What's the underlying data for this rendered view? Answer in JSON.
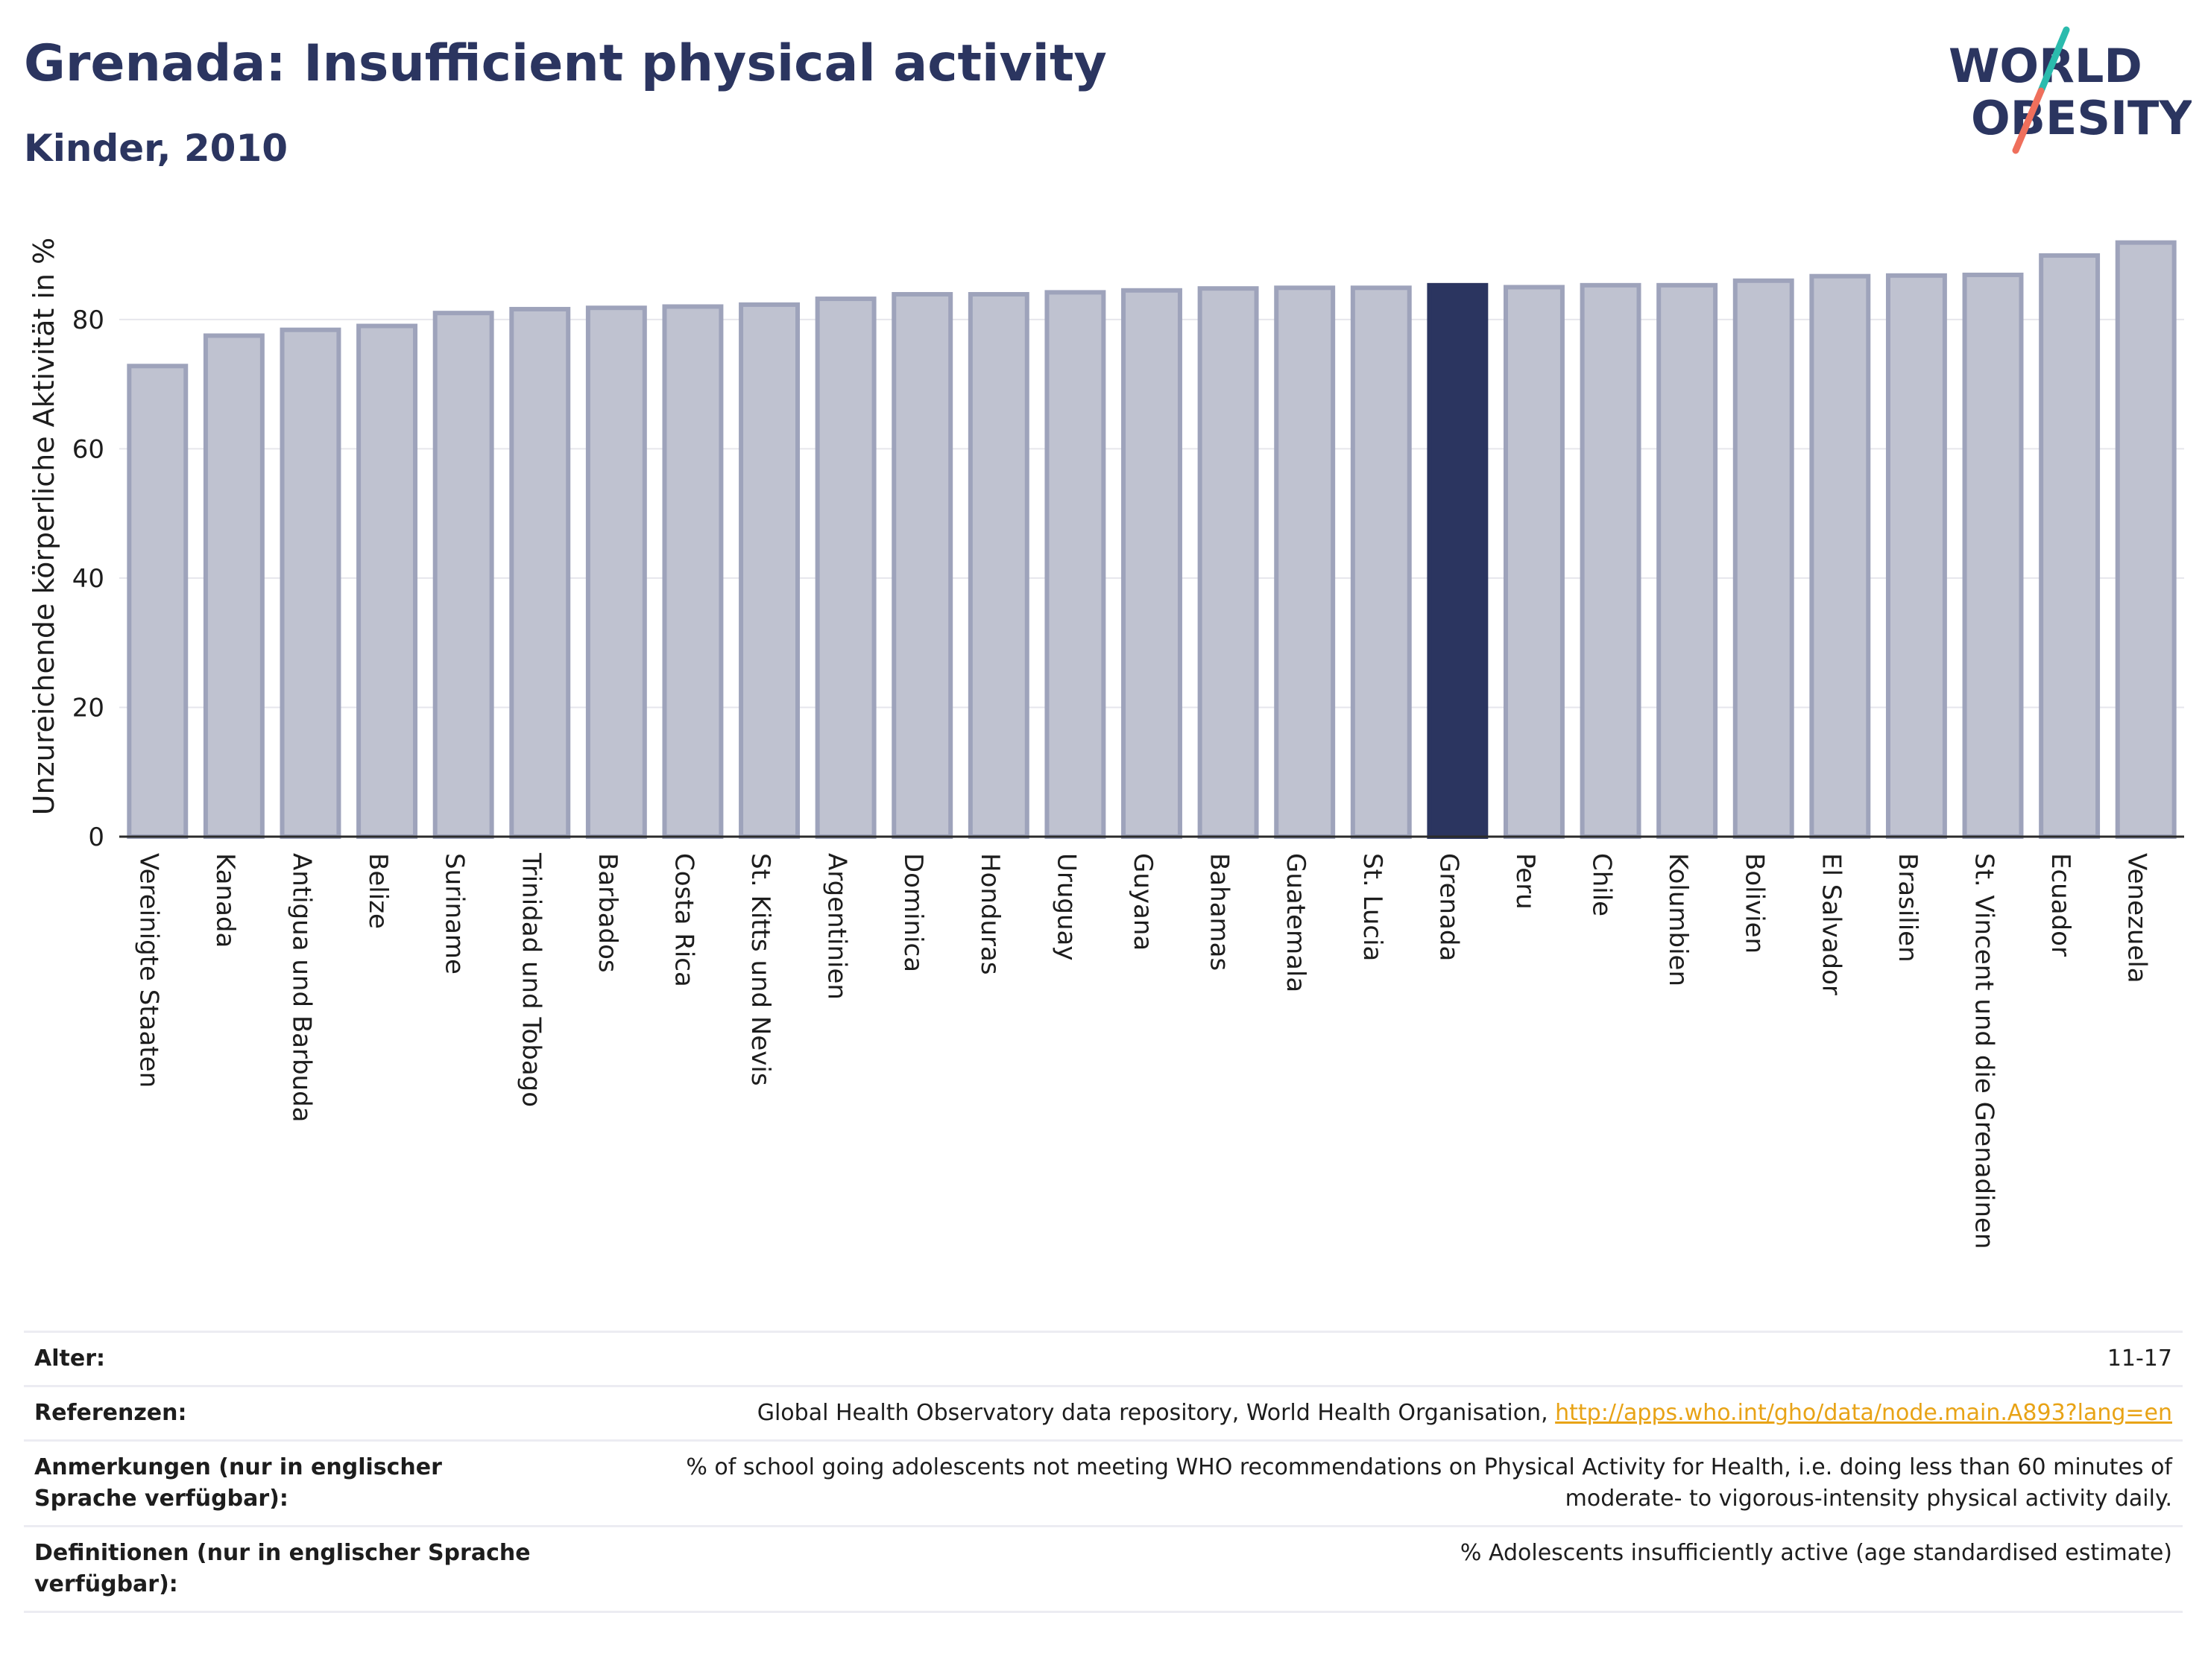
{
  "header": {
    "title": "Grenada: Insufficient physical activity",
    "subtitle": "Kinder, 2010"
  },
  "logo": {
    "line1": "WORLD",
    "line2": "OBESITY"
  },
  "colors": {
    "highlight_bar": "#2b3560",
    "other_bar_fill": "#bfc2d0",
    "other_bar_stroke": "#9ea3bb",
    "title": "#2b3560",
    "link": "#e8a316",
    "logo_teal": "#2bbbad",
    "logo_coral": "#ef6f5c"
  },
  "chart_data": {
    "type": "bar",
    "title": "Grenada: Insufficient physical activity",
    "subtitle": "Kinder, 2010",
    "xlabel": "",
    "ylabel": "Unzureichende körperliche Aktivität in %",
    "ylim": [
      0,
      96
    ],
    "yticks": [
      0,
      20,
      40,
      60,
      80
    ],
    "grid": true,
    "highlight": "Grenada",
    "categories": [
      "Vereinigte Staaten",
      "Kanada",
      "Antigua und Barbuda",
      "Belize",
      "Suriname",
      "Trinidad und Tobago",
      "Barbados",
      "Costa Rica",
      "St. Kitts und Nevis",
      "Argentinien",
      "Dominica",
      "Honduras",
      "Uruguay",
      "Guyana",
      "Bahamas",
      "Guatemala",
      "St. Lucia",
      "Grenada",
      "Peru",
      "Chile",
      "Kolumbien",
      "Bolivien",
      "El Salvador",
      "Brasilien",
      "St. Vincent und die Grenadinen",
      "Ecuador",
      "Venezuela"
    ],
    "values": [
      72.8,
      77.5,
      78.4,
      79.0,
      81.0,
      81.6,
      81.8,
      82.0,
      82.3,
      83.2,
      83.9,
      83.9,
      84.2,
      84.5,
      84.8,
      84.9,
      84.9,
      85.3,
      85.0,
      85.3,
      85.3,
      86.0,
      86.7,
      86.8,
      86.9,
      89.9,
      91.9
    ]
  },
  "meta": [
    {
      "label": "Alter:",
      "value": "11-17"
    },
    {
      "label": "Referenzen:",
      "value": "Global Health Observatory data repository, World Health Organisation, ",
      "link": "http://apps.who.int/gho/data/node.main.A893?lang=en"
    },
    {
      "label": "Anmerkungen (nur in englischer Sprache verfügbar):",
      "value": "% of school going adolescents not meeting WHO recommendations on Physical Activity for Health, i.e. doing less than 60 minutes of moderate- to vigorous-intensity physical activity daily."
    },
    {
      "label": "Definitionen (nur in englischer Sprache verfügbar):",
      "value": "% Adolescents insufficiently active (age standardised estimate)"
    }
  ]
}
